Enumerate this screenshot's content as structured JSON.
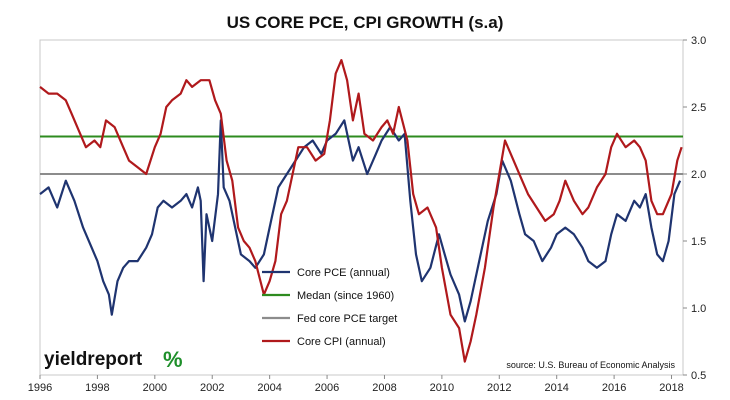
{
  "chart_data": {
    "type": "line",
    "title": "US CORE PCE, CPI GROWTH (s.a)",
    "source": "source: U.S. Bureau of Economic Analysis",
    "logo": {
      "main": "yieldreport",
      "pct": "%"
    },
    "x_ticks": [
      "1996",
      "1998",
      "2000",
      "2002",
      "2004",
      "2006",
      "2008",
      "2010",
      "2012",
      "2014",
      "2016",
      "2018"
    ],
    "y_ticks": [
      "3.0",
      "2.5",
      "2.0",
      "1.5",
      "1.0",
      "0.5"
    ],
    "xlim": [
      1996,
      2018.4
    ],
    "ylim": [
      0.5,
      3.0
    ],
    "legend_position": "center",
    "series": [
      {
        "name": "Core PCE (annual)",
        "color": "#1f3470",
        "points": [
          [
            1996.0,
            1.85
          ],
          [
            1996.3,
            1.9
          ],
          [
            1996.6,
            1.75
          ],
          [
            1996.9,
            1.95
          ],
          [
            1997.2,
            1.8
          ],
          [
            1997.5,
            1.6
          ],
          [
            1997.8,
            1.45
          ],
          [
            1998.0,
            1.35
          ],
          [
            1998.2,
            1.2
          ],
          [
            1998.4,
            1.1
          ],
          [
            1998.5,
            0.95
          ],
          [
            1998.7,
            1.2
          ],
          [
            1998.9,
            1.3
          ],
          [
            1999.1,
            1.35
          ],
          [
            1999.4,
            1.35
          ],
          [
            1999.7,
            1.45
          ],
          [
            1999.9,
            1.55
          ],
          [
            2000.1,
            1.75
          ],
          [
            2000.3,
            1.8
          ],
          [
            2000.6,
            1.75
          ],
          [
            2000.9,
            1.8
          ],
          [
            2001.1,
            1.85
          ],
          [
            2001.3,
            1.75
          ],
          [
            2001.5,
            1.9
          ],
          [
            2001.6,
            1.8
          ],
          [
            2001.7,
            1.2
          ],
          [
            2001.8,
            1.7
          ],
          [
            2002.0,
            1.5
          ],
          [
            2002.2,
            1.85
          ],
          [
            2002.3,
            2.4
          ],
          [
            2002.4,
            1.9
          ],
          [
            2002.6,
            1.8
          ],
          [
            2002.8,
            1.6
          ],
          [
            2003.0,
            1.4
          ],
          [
            2003.3,
            1.35
          ],
          [
            2003.5,
            1.3
          ],
          [
            2003.8,
            1.4
          ],
          [
            2004.0,
            1.6
          ],
          [
            2004.3,
            1.9
          ],
          [
            2004.6,
            2.0
          ],
          [
            2004.9,
            2.1
          ],
          [
            2005.2,
            2.2
          ],
          [
            2005.5,
            2.25
          ],
          [
            2005.8,
            2.15
          ],
          [
            2006.0,
            2.25
          ],
          [
            2006.3,
            2.3
          ],
          [
            2006.6,
            2.4
          ],
          [
            2006.9,
            2.1
          ],
          [
            2007.1,
            2.2
          ],
          [
            2007.4,
            2.0
          ],
          [
            2007.7,
            2.15
          ],
          [
            2007.9,
            2.25
          ],
          [
            2008.2,
            2.35
          ],
          [
            2008.5,
            2.25
          ],
          [
            2008.7,
            2.3
          ],
          [
            2008.9,
            1.8
          ],
          [
            2009.1,
            1.4
          ],
          [
            2009.3,
            1.2
          ],
          [
            2009.6,
            1.3
          ],
          [
            2009.9,
            1.55
          ],
          [
            2010.1,
            1.4
          ],
          [
            2010.3,
            1.25
          ],
          [
            2010.6,
            1.1
          ],
          [
            2010.8,
            0.9
          ],
          [
            2011.0,
            1.05
          ],
          [
            2011.3,
            1.35
          ],
          [
            2011.6,
            1.65
          ],
          [
            2011.9,
            1.85
          ],
          [
            2012.1,
            2.1
          ],
          [
            2012.4,
            1.95
          ],
          [
            2012.7,
            1.7
          ],
          [
            2012.9,
            1.55
          ],
          [
            2013.2,
            1.5
          ],
          [
            2013.5,
            1.35
          ],
          [
            2013.8,
            1.45
          ],
          [
            2014.0,
            1.55
          ],
          [
            2014.3,
            1.6
          ],
          [
            2014.6,
            1.55
          ],
          [
            2014.9,
            1.45
          ],
          [
            2015.1,
            1.35
          ],
          [
            2015.4,
            1.3
          ],
          [
            2015.7,
            1.35
          ],
          [
            2015.9,
            1.55
          ],
          [
            2016.1,
            1.7
          ],
          [
            2016.4,
            1.65
          ],
          [
            2016.7,
            1.8
          ],
          [
            2016.9,
            1.75
          ],
          [
            2017.1,
            1.85
          ],
          [
            2017.3,
            1.6
          ],
          [
            2017.5,
            1.4
          ],
          [
            2017.7,
            1.35
          ],
          [
            2017.9,
            1.5
          ],
          [
            2018.1,
            1.85
          ],
          [
            2018.3,
            1.95
          ]
        ]
      },
      {
        "name": "Medan (since 1960)",
        "color": "#2e8b1f",
        "points": [
          [
            1996.0,
            2.28
          ],
          [
            2018.4,
            2.28
          ]
        ]
      },
      {
        "name": "Fed core PCE target",
        "color": "#8c8c8c",
        "points": [
          [
            1996.0,
            2.0
          ],
          [
            2018.4,
            2.0
          ]
        ]
      },
      {
        "name": "Core CPI (annual)",
        "color": "#b0191c",
        "points": [
          [
            1996.0,
            2.65
          ],
          [
            1996.3,
            2.6
          ],
          [
            1996.6,
            2.6
          ],
          [
            1996.9,
            2.55
          ],
          [
            1997.1,
            2.45
          ],
          [
            1997.3,
            2.35
          ],
          [
            1997.6,
            2.2
          ],
          [
            1997.9,
            2.25
          ],
          [
            1998.1,
            2.2
          ],
          [
            1998.3,
            2.4
          ],
          [
            1998.6,
            2.35
          ],
          [
            1998.9,
            2.2
          ],
          [
            1999.1,
            2.1
          ],
          [
            1999.4,
            2.05
          ],
          [
            1999.7,
            2.0
          ],
          [
            2000.0,
            2.2
          ],
          [
            2000.2,
            2.3
          ],
          [
            2000.4,
            2.5
          ],
          [
            2000.6,
            2.55
          ],
          [
            2000.9,
            2.6
          ],
          [
            2001.1,
            2.7
          ],
          [
            2001.3,
            2.65
          ],
          [
            2001.6,
            2.7
          ],
          [
            2001.9,
            2.7
          ],
          [
            2002.1,
            2.55
          ],
          [
            2002.3,
            2.45
          ],
          [
            2002.5,
            2.1
          ],
          [
            2002.7,
            1.95
          ],
          [
            2002.9,
            1.6
          ],
          [
            2003.1,
            1.5
          ],
          [
            2003.3,
            1.45
          ],
          [
            2003.5,
            1.35
          ],
          [
            2003.8,
            1.1
          ],
          [
            2004.0,
            1.2
          ],
          [
            2004.2,
            1.35
          ],
          [
            2004.4,
            1.7
          ],
          [
            2004.6,
            1.8
          ],
          [
            2004.8,
            2.0
          ],
          [
            2005.0,
            2.2
          ],
          [
            2005.3,
            2.2
          ],
          [
            2005.6,
            2.1
          ],
          [
            2005.9,
            2.15
          ],
          [
            2006.1,
            2.4
          ],
          [
            2006.3,
            2.75
          ],
          [
            2006.5,
            2.85
          ],
          [
            2006.7,
            2.7
          ],
          [
            2006.9,
            2.4
          ],
          [
            2007.1,
            2.6
          ],
          [
            2007.3,
            2.3
          ],
          [
            2007.6,
            2.25
          ],
          [
            2007.9,
            2.35
          ],
          [
            2008.1,
            2.4
          ],
          [
            2008.3,
            2.3
          ],
          [
            2008.5,
            2.5
          ],
          [
            2008.8,
            2.25
          ],
          [
            2009.0,
            1.85
          ],
          [
            2009.2,
            1.7
          ],
          [
            2009.5,
            1.75
          ],
          [
            2009.8,
            1.6
          ],
          [
            2010.0,
            1.3
          ],
          [
            2010.3,
            0.95
          ],
          [
            2010.6,
            0.85
          ],
          [
            2010.8,
            0.6
          ],
          [
            2011.0,
            0.75
          ],
          [
            2011.2,
            0.95
          ],
          [
            2011.5,
            1.3
          ],
          [
            2011.8,
            1.75
          ],
          [
            2012.0,
            2.0
          ],
          [
            2012.2,
            2.25
          ],
          [
            2012.5,
            2.1
          ],
          [
            2012.8,
            1.95
          ],
          [
            2013.0,
            1.85
          ],
          [
            2013.3,
            1.75
          ],
          [
            2013.6,
            1.65
          ],
          [
            2013.9,
            1.7
          ],
          [
            2014.1,
            1.8
          ],
          [
            2014.3,
            1.95
          ],
          [
            2014.6,
            1.8
          ],
          [
            2014.9,
            1.7
          ],
          [
            2015.1,
            1.75
          ],
          [
            2015.4,
            1.9
          ],
          [
            2015.7,
            2.0
          ],
          [
            2015.9,
            2.2
          ],
          [
            2016.1,
            2.3
          ],
          [
            2016.4,
            2.2
          ],
          [
            2016.7,
            2.25
          ],
          [
            2016.9,
            2.2
          ],
          [
            2017.1,
            2.1
          ],
          [
            2017.3,
            1.8
          ],
          [
            2017.5,
            1.7
          ],
          [
            2017.7,
            1.7
          ],
          [
            2017.9,
            1.8
          ],
          [
            2018.0,
            1.85
          ],
          [
            2018.2,
            2.1
          ],
          [
            2018.35,
            2.2
          ]
        ]
      }
    ]
  }
}
